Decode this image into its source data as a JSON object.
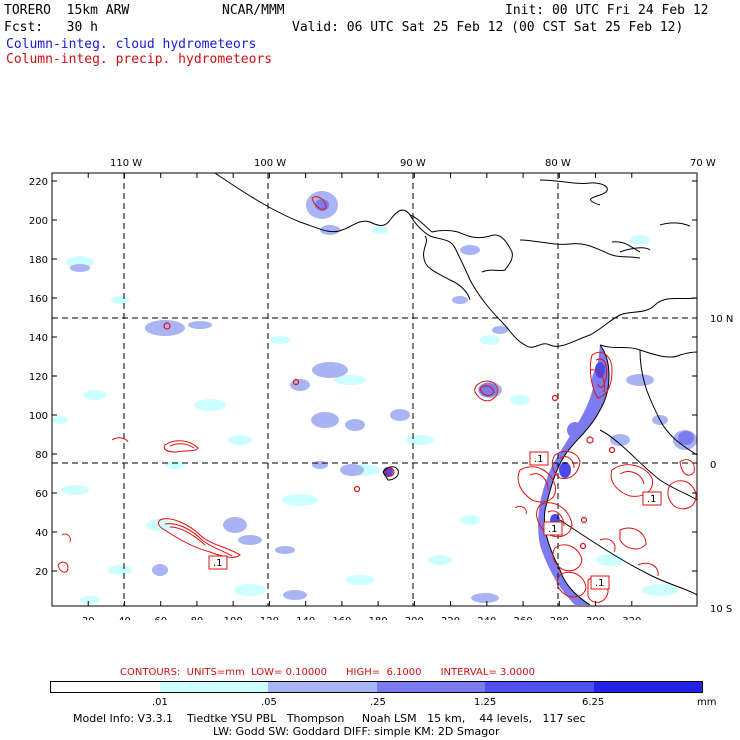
{
  "header": {
    "model": "TORERO  15km ARW",
    "center": "NCAR/MMM",
    "init": "Init: 00 UTC Fri 24 Feb 12",
    "fcst": "Fcst:   30 h",
    "valid": "Valid: 06 UTC Sat 25 Feb 12 (00 CST Sat 25 Feb 12)",
    "line_blue": "Column-integ. cloud hydrometeors",
    "line_red": "Column-integ. precip. hydrometeors"
  },
  "map": {
    "top_lon_labels": [
      "110 W",
      "100 W",
      "90 W",
      "80 W",
      "70 W"
    ],
    "right_lat_labels": [
      "10 N",
      "0",
      "10 S"
    ],
    "y_ticks": [
      "220",
      "200",
      "180",
      "160",
      "140",
      "120",
      "100",
      "80",
      "60",
      "40",
      "20"
    ],
    "x_ticks": [
      "20",
      "40",
      "60",
      "80",
      "100",
      "120",
      "140",
      "160",
      "180",
      "200",
      "220",
      "240",
      "260",
      "280",
      "300",
      "320"
    ],
    "box_labels": [
      ".1",
      ".1",
      ".1",
      ".1",
      ".1"
    ],
    "colors": {
      "coast": "#000000",
      "contour": "#e01010",
      "grid": "#000000"
    }
  },
  "legend": {
    "contours_line": "CONTOURS:  UNITS=mm  LOW= 0.10000      HIGH=  6.1000      INTERVAL= 3.0000",
    "scale_labels": [
      ".01",
      ".05",
      ".25",
      "1.25",
      "6.25",
      "mm"
    ],
    "scale_colors": [
      "#ffffff",
      "#ccffff",
      "#a8b4f4",
      "#7c7cf0",
      "#5050f0",
      "#2222e6"
    ]
  },
  "footer": {
    "line1": "Model Info: V3.3.1    Tiedtke YSU PBL   Thompson     Noah LSM   15 km,    44 levels,   117 sec",
    "line2": "LW: Godd SW: Goddard DIFF: simple KM: 2D Smagor"
  }
}
